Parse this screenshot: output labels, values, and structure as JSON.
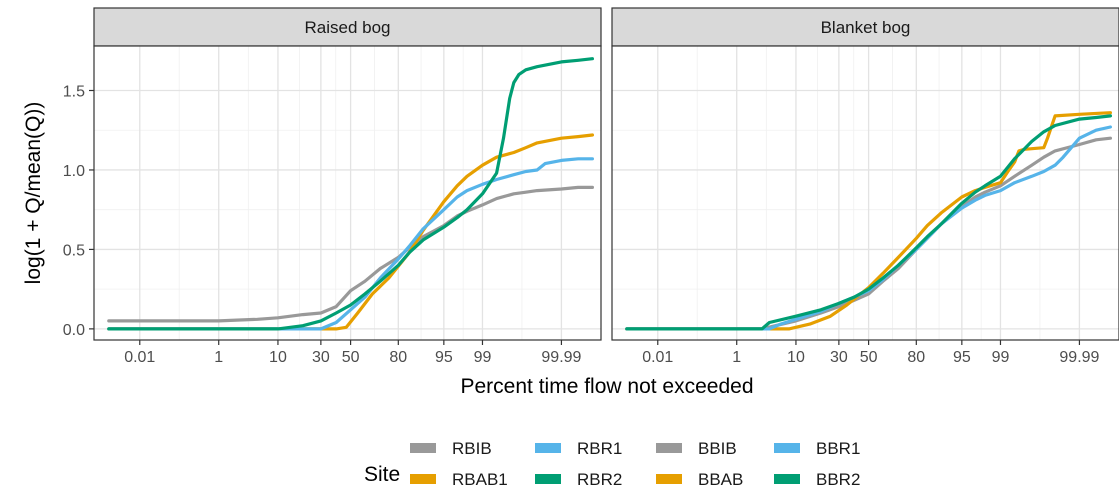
{
  "chart_data": {
    "type": "line",
    "ylabel": "log(1 + Q/mean(Q))",
    "xlabel": "Percent time flow not exceeded",
    "x_scale": "probability (normal quantile)",
    "ylim": [
      -0.07,
      1.78
    ],
    "xlim": [
      0.0003,
      99.9995
    ],
    "x_ticks": [
      0.01,
      1,
      10,
      30,
      50,
      80,
      95,
      99,
      99.99
    ],
    "x_tick_labels": [
      "0.01",
      "1",
      "10",
      "30",
      "50",
      "80",
      "95",
      "99",
      "99.99"
    ],
    "y_ticks": [
      0,
      0.5,
      1.0,
      1.5
    ],
    "y_tick_labels": [
      "0.0",
      "0.5",
      "1.0",
      "1.5"
    ],
    "grid": true,
    "legend": {
      "title": "Site",
      "position": "bottom",
      "entries": [
        {
          "label": "RBIB",
          "color": "#999999"
        },
        {
          "label": "RBAB1",
          "color": "#E69F00"
        },
        {
          "label": "RBR1",
          "color": "#56B4E9"
        },
        {
          "label": "RBR2",
          "color": "#009E73"
        },
        {
          "label": "BBIB",
          "color": "#999999"
        },
        {
          "label": "BBAB",
          "color": "#E69F00"
        },
        {
          "label": "BBR1",
          "color": "#56B4E9"
        },
        {
          "label": "BBR2",
          "color": "#009E73"
        }
      ]
    },
    "panels": [
      {
        "title": "Raised bog",
        "series": [
          {
            "name": "RBIB",
            "color": "#999999",
            "points": [
              [
                0.001,
                0.05
              ],
              [
                1,
                0.05
              ],
              [
                5,
                0.06
              ],
              [
                10,
                0.07
              ],
              [
                20,
                0.09
              ],
              [
                30,
                0.1
              ],
              [
                40,
                0.14
              ],
              [
                50,
                0.24
              ],
              [
                60,
                0.3
              ],
              [
                70,
                0.38
              ],
              [
                80,
                0.45
              ],
              [
                85,
                0.51
              ],
              [
                90,
                0.58
              ],
              [
                95,
                0.65
              ],
              [
                97,
                0.71
              ],
              [
                98,
                0.74
              ],
              [
                99,
                0.78
              ],
              [
                99.5,
                0.82
              ],
              [
                99.8,
                0.85
              ],
              [
                99.9,
                0.86
              ],
              [
                99.95,
                0.87
              ],
              [
                99.99,
                0.88
              ],
              [
                99.997,
                0.89
              ],
              [
                99.999,
                0.89
              ]
            ]
          },
          {
            "name": "RBAB1",
            "color": "#E69F00",
            "points": [
              [
                0.001,
                0
              ],
              [
                40,
                0
              ],
              [
                47,
                0.01
              ],
              [
                55,
                0.1
              ],
              [
                65,
                0.22
              ],
              [
                75,
                0.32
              ],
              [
                85,
                0.48
              ],
              [
                90,
                0.62
              ],
              [
                95,
                0.8
              ],
              [
                97,
                0.9
              ],
              [
                98,
                0.96
              ],
              [
                99,
                1.03
              ],
              [
                99.5,
                1.08
              ],
              [
                99.8,
                1.11
              ],
              [
                99.9,
                1.14
              ],
              [
                99.95,
                1.17
              ],
              [
                99.99,
                1.2
              ],
              [
                99.997,
                1.21
              ],
              [
                99.999,
                1.22
              ]
            ]
          },
          {
            "name": "RBR1",
            "color": "#56B4E9",
            "points": [
              [
                0.001,
                0
              ],
              [
                30,
                0
              ],
              [
                40,
                0.04
              ],
              [
                50,
                0.12
              ],
              [
                60,
                0.2
              ],
              [
                70,
                0.32
              ],
              [
                80,
                0.44
              ],
              [
                85,
                0.52
              ],
              [
                90,
                0.63
              ],
              [
                95,
                0.75
              ],
              [
                97,
                0.83
              ],
              [
                98,
                0.87
              ],
              [
                99,
                0.91
              ],
              [
                99.5,
                0.94
              ],
              [
                99.8,
                0.97
              ],
              [
                99.9,
                0.99
              ],
              [
                99.95,
                1.0
              ],
              [
                99.97,
                1.04
              ],
              [
                99.99,
                1.06
              ],
              [
                99.997,
                1.07
              ],
              [
                99.999,
                1.07
              ]
            ]
          },
          {
            "name": "RBR2",
            "color": "#009E73",
            "points": [
              [
                0.001,
                0
              ],
              [
                10,
                0
              ],
              [
                20,
                0.02
              ],
              [
                30,
                0.05
              ],
              [
                40,
                0.1
              ],
              [
                50,
                0.15
              ],
              [
                60,
                0.22
              ],
              [
                70,
                0.3
              ],
              [
                80,
                0.4
              ],
              [
                85,
                0.48
              ],
              [
                90,
                0.56
              ],
              [
                95,
                0.64
              ],
              [
                97,
                0.7
              ],
              [
                98,
                0.75
              ],
              [
                99,
                0.85
              ],
              [
                99.5,
                0.98
              ],
              [
                99.65,
                1.2
              ],
              [
                99.75,
                1.45
              ],
              [
                99.8,
                1.55
              ],
              [
                99.85,
                1.6
              ],
              [
                99.9,
                1.63
              ],
              [
                99.95,
                1.65
              ],
              [
                99.99,
                1.68
              ],
              [
                99.997,
                1.69
              ],
              [
                99.999,
                1.7
              ]
            ]
          }
        ]
      },
      {
        "title": "Blanket bog",
        "series": [
          {
            "name": "BBIB",
            "color": "#999999",
            "points": [
              [
                0.001,
                0
              ],
              [
                3,
                0
              ],
              [
                5,
                0.02
              ],
              [
                10,
                0.05
              ],
              [
                20,
                0.1
              ],
              [
                30,
                0.14
              ],
              [
                40,
                0.18
              ],
              [
                50,
                0.22
              ],
              [
                60,
                0.3
              ],
              [
                70,
                0.38
              ],
              [
                80,
                0.5
              ],
              [
                85,
                0.57
              ],
              [
                90,
                0.66
              ],
              [
                95,
                0.77
              ],
              [
                97,
                0.83
              ],
              [
                98,
                0.86
              ],
              [
                99,
                0.9
              ],
              [
                99.5,
                0.96
              ],
              [
                99.8,
                1.03
              ],
              [
                99.9,
                1.08
              ],
              [
                99.95,
                1.12
              ],
              [
                99.99,
                1.16
              ],
              [
                99.997,
                1.19
              ],
              [
                99.999,
                1.2
              ]
            ]
          },
          {
            "name": "BBAB",
            "color": "#E69F00",
            "points": [
              [
                0.001,
                0
              ],
              [
                8,
                0
              ],
              [
                15,
                0.03
              ],
              [
                25,
                0.08
              ],
              [
                35,
                0.15
              ],
              [
                50,
                0.26
              ],
              [
                60,
                0.35
              ],
              [
                70,
                0.45
              ],
              [
                80,
                0.57
              ],
              [
                85,
                0.65
              ],
              [
                90,
                0.73
              ],
              [
                95,
                0.83
              ],
              [
                97,
                0.87
              ],
              [
                98,
                0.89
              ],
              [
                99,
                0.92
              ],
              [
                99.3,
                0.99
              ],
              [
                99.5,
                1.05
              ],
              [
                99.6,
                1.12
              ],
              [
                99.7,
                1.13
              ],
              [
                99.9,
                1.14
              ],
              [
                99.92,
                1.2
              ],
              [
                99.95,
                1.34
              ],
              [
                99.99,
                1.35
              ],
              [
                99.999,
                1.36
              ]
            ]
          },
          {
            "name": "BBR1",
            "color": "#56B4E9",
            "points": [
              [
                0.001,
                0
              ],
              [
                4,
                0
              ],
              [
                6,
                0.03
              ],
              [
                10,
                0.06
              ],
              [
                20,
                0.11
              ],
              [
                30,
                0.16
              ],
              [
                40,
                0.2
              ],
              [
                50,
                0.24
              ],
              [
                60,
                0.31
              ],
              [
                70,
                0.4
              ],
              [
                80,
                0.5
              ],
              [
                85,
                0.57
              ],
              [
                90,
                0.66
              ],
              [
                95,
                0.76
              ],
              [
                97,
                0.81
              ],
              [
                98,
                0.84
              ],
              [
                99,
                0.87
              ],
              [
                99.5,
                0.92
              ],
              [
                99.8,
                0.96
              ],
              [
                99.9,
                0.99
              ],
              [
                99.95,
                1.03
              ],
              [
                99.97,
                1.08
              ],
              [
                99.99,
                1.2
              ],
              [
                99.997,
                1.25
              ],
              [
                99.999,
                1.27
              ]
            ]
          },
          {
            "name": "BBR2",
            "color": "#009E73",
            "points": [
              [
                0.001,
                0
              ],
              [
                3,
                0
              ],
              [
                4,
                0.04
              ],
              [
                10,
                0.08
              ],
              [
                20,
                0.12
              ],
              [
                30,
                0.16
              ],
              [
                40,
                0.2
              ],
              [
                50,
                0.25
              ],
              [
                60,
                0.32
              ],
              [
                70,
                0.4
              ],
              [
                80,
                0.51
              ],
              [
                85,
                0.58
              ],
              [
                90,
                0.66
              ],
              [
                95,
                0.79
              ],
              [
                97,
                0.86
              ],
              [
                98,
                0.9
              ],
              [
                99,
                0.96
              ],
              [
                99.5,
                1.07
              ],
              [
                99.8,
                1.18
              ],
              [
                99.9,
                1.24
              ],
              [
                99.95,
                1.28
              ],
              [
                99.99,
                1.32
              ],
              [
                99.997,
                1.33
              ],
              [
                99.999,
                1.34
              ]
            ]
          }
        ]
      }
    ]
  }
}
